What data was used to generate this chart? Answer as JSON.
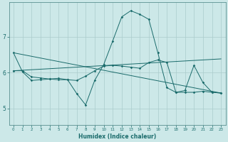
{
  "xlabel": "Humidex (Indice chaleur)",
  "bg_color": "#cce8e8",
  "grid_color": "#aacccc",
  "line_color": "#1a6b6b",
  "xlim": [
    -0.5,
    23.5
  ],
  "ylim": [
    4.55,
    7.95
  ],
  "yticks": [
    5,
    6,
    7
  ],
  "xticks": [
    0,
    1,
    2,
    3,
    4,
    5,
    6,
    7,
    8,
    9,
    10,
    11,
    12,
    13,
    14,
    15,
    16,
    17,
    18,
    19,
    20,
    21,
    22,
    23
  ],
  "s1_x": [
    0,
    1,
    2,
    3,
    4,
    5,
    6,
    7,
    8,
    9,
    10,
    11,
    12,
    13,
    14,
    15,
    16,
    17,
    18,
    19,
    20,
    21,
    22,
    23
  ],
  "s1_y": [
    6.55,
    6.02,
    5.78,
    5.8,
    5.82,
    5.84,
    5.8,
    5.42,
    5.1,
    5.78,
    6.22,
    6.88,
    7.55,
    7.72,
    7.62,
    7.48,
    6.55,
    5.58,
    5.45,
    5.45,
    5.45,
    5.48,
    5.45,
    5.43
  ],
  "s2_x": [
    0,
    1,
    2,
    3,
    4,
    5,
    6,
    7,
    8,
    9,
    10,
    11,
    12,
    13,
    14,
    15,
    16,
    17,
    18,
    19,
    20,
    21,
    22,
    23
  ],
  "s2_y": [
    6.05,
    6.05,
    5.88,
    5.85,
    5.82,
    5.8,
    5.8,
    5.78,
    5.9,
    6.05,
    6.18,
    6.2,
    6.18,
    6.15,
    6.12,
    6.28,
    6.35,
    6.28,
    5.45,
    5.5,
    6.2,
    5.72,
    5.45,
    5.43
  ],
  "trend1_x": [
    0,
    23
  ],
  "trend1_y": [
    6.05,
    6.38
  ],
  "trend2_x": [
    0,
    23
  ],
  "trend2_y": [
    6.55,
    5.43
  ],
  "marker_size": 1.8,
  "tick_fontsize_x": 4.0,
  "tick_fontsize_y": 5.5,
  "xlabel_fontsize": 5.5
}
